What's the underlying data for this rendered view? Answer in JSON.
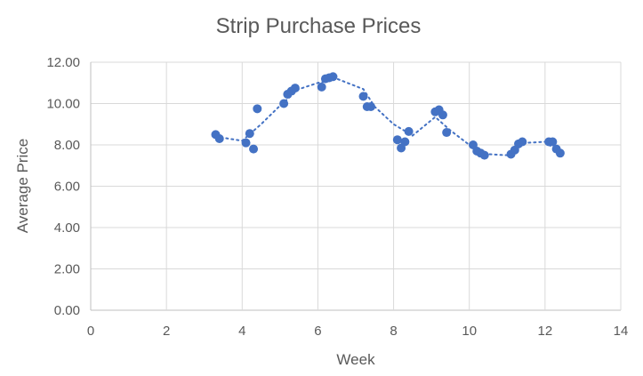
{
  "chart_data": {
    "type": "scatter",
    "title": "Strip Purchase Prices",
    "xlabel": "Week",
    "ylabel": "Average Price",
    "xlim": [
      0,
      14
    ],
    "ylim": [
      0,
      12
    ],
    "x_ticks": [
      "0",
      "2",
      "4",
      "6",
      "8",
      "10",
      "12",
      "14"
    ],
    "y_ticks": [
      "0.00",
      "2.00",
      "4.00",
      "6.00",
      "8.00",
      "10.00",
      "12.00"
    ],
    "grid": "vertical and horizontal",
    "legend": "none",
    "marker_color": "#4472C4",
    "series": [
      {
        "points": [
          {
            "x": 3.3,
            "y": 8.5
          },
          {
            "x": 3.4,
            "y": 8.3
          },
          {
            "x": 4.1,
            "y": 8.1
          },
          {
            "x": 4.2,
            "y": 8.55
          },
          {
            "x": 4.3,
            "y": 7.8
          },
          {
            "x": 4.4,
            "y": 9.75
          },
          {
            "x": 5.1,
            "y": 10.0
          },
          {
            "x": 5.2,
            "y": 10.45
          },
          {
            "x": 5.3,
            "y": 10.6
          },
          {
            "x": 5.4,
            "y": 10.75
          },
          {
            "x": 6.1,
            "y": 10.8
          },
          {
            "x": 6.2,
            "y": 11.2
          },
          {
            "x": 6.3,
            "y": 11.25
          },
          {
            "x": 6.4,
            "y": 11.3
          },
          {
            "x": 7.2,
            "y": 10.35
          },
          {
            "x": 7.3,
            "y": 9.85
          },
          {
            "x": 7.4,
            "y": 9.85
          },
          {
            "x": 8.1,
            "y": 8.25
          },
          {
            "x": 8.2,
            "y": 7.85
          },
          {
            "x": 8.3,
            "y": 8.15
          },
          {
            "x": 8.4,
            "y": 8.65
          },
          {
            "x": 9.1,
            "y": 9.6
          },
          {
            "x": 9.2,
            "y": 9.7
          },
          {
            "x": 9.3,
            "y": 9.45
          },
          {
            "x": 9.4,
            "y": 8.6
          },
          {
            "x": 10.1,
            "y": 8.0
          },
          {
            "x": 10.2,
            "y": 7.7
          },
          {
            "x": 10.3,
            "y": 7.6
          },
          {
            "x": 10.4,
            "y": 7.5
          },
          {
            "x": 11.1,
            "y": 7.55
          },
          {
            "x": 11.2,
            "y": 7.75
          },
          {
            "x": 11.3,
            "y": 8.05
          },
          {
            "x": 11.4,
            "y": 8.15
          },
          {
            "x": 12.1,
            "y": 8.15
          },
          {
            "x": 12.2,
            "y": 8.15
          },
          {
            "x": 12.3,
            "y": 7.8
          },
          {
            "x": 12.4,
            "y": 7.6
          }
        ]
      }
    ],
    "trendline": {
      "style": "dotted",
      "points": [
        {
          "x": 3.3,
          "y": 8.4
        },
        {
          "x": 4.0,
          "y": 8.2
        },
        {
          "x": 4.5,
          "y": 9.0
        },
        {
          "x": 5.0,
          "y": 9.9
        },
        {
          "x": 5.5,
          "y": 10.7
        },
        {
          "x": 6.0,
          "y": 11.0
        },
        {
          "x": 6.5,
          "y": 11.2
        },
        {
          "x": 7.2,
          "y": 10.7
        },
        {
          "x": 7.5,
          "y": 9.85
        },
        {
          "x": 8.0,
          "y": 9.0
        },
        {
          "x": 8.5,
          "y": 8.45
        },
        {
          "x": 9.1,
          "y": 9.35
        },
        {
          "x": 9.5,
          "y": 8.7
        },
        {
          "x": 10.0,
          "y": 8.0
        },
        {
          "x": 10.5,
          "y": 7.55
        },
        {
          "x": 11.0,
          "y": 7.5
        },
        {
          "x": 11.5,
          "y": 8.1
        },
        {
          "x": 12.0,
          "y": 8.15
        },
        {
          "x": 12.4,
          "y": 7.6
        }
      ]
    }
  }
}
